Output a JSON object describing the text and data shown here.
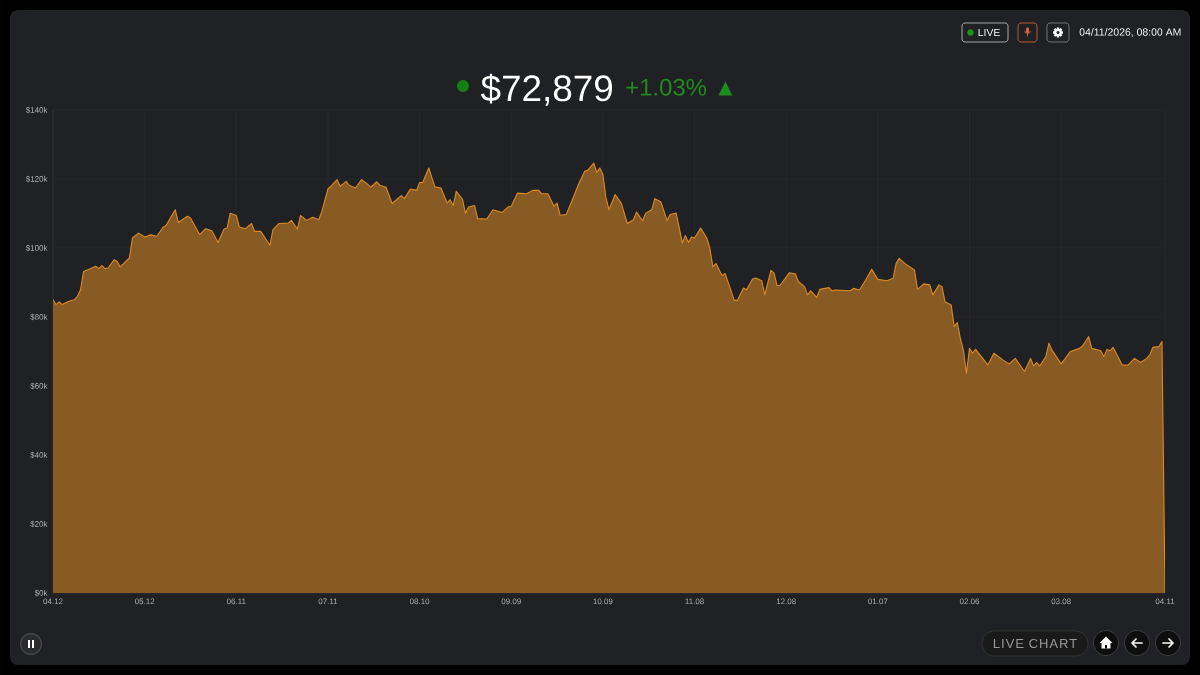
{
  "chart_data": {
    "type": "area",
    "title": "$72,879",
    "subtitle": "+1.03% ▲",
    "annotations": [
      "LIVE",
      "04/11/2026, 08:00 AM",
      "LIVE CHART"
    ],
    "color": "#dd8a25",
    "grid": true,
    "xlim": [
      "2025-04-12",
      "2026-04-11"
    ],
    "xticks": [
      {
        "value": "2025-04-12",
        "label": "04.12"
      },
      {
        "value": "2025-05-12",
        "label": "05.12"
      },
      {
        "value": "2025-06-11",
        "label": "06.11"
      },
      {
        "value": "2025-07-11",
        "label": "07.11"
      },
      {
        "value": "2025-08-10",
        "label": "08.10"
      },
      {
        "value": "2025-09-09",
        "label": "09.09"
      },
      {
        "value": "2025-10-09",
        "label": "10.09"
      },
      {
        "value": "2025-11-08",
        "label": "11.08"
      },
      {
        "value": "2025-12-08",
        "label": "12.08"
      },
      {
        "value": "2026-01-07",
        "label": "01.07"
      },
      {
        "value": "2026-02-06",
        "label": "02.06"
      },
      {
        "value": "2026-03-08",
        "label": "03.08"
      },
      {
        "value": "2026-04-11",
        "label": "04.11"
      }
    ],
    "ylim": [
      0,
      140000
    ],
    "yticks": [
      {
        "value": 0,
        "label": "$0k"
      },
      {
        "value": 20000,
        "label": "$20k"
      },
      {
        "value": 40000,
        "label": "$40k"
      },
      {
        "value": 60000,
        "label": "$60k"
      },
      {
        "value": 80000,
        "label": "$80k"
      },
      {
        "value": 100000,
        "label": "$100k"
      },
      {
        "value": 120000,
        "label": "$120k"
      },
      {
        "value": 140000,
        "label": "$140k"
      }
    ],
    "x": [
      "2025-04-12",
      "2025-04-13",
      "2025-04-14",
      "2025-04-15",
      "2025-04-17",
      "2025-04-18",
      "2025-04-19",
      "2025-04-20",
      "2025-04-21",
      "2025-04-22",
      "2025-04-24",
      "2025-04-26",
      "2025-04-27",
      "2025-04-28",
      "2025-04-29",
      "2025-04-30",
      "2025-05-02",
      "2025-05-03",
      "2025-05-04",
      "2025-05-07",
      "2025-05-08",
      "2025-05-10",
      "2025-05-12",
      "2025-05-14",
      "2025-05-16",
      "2025-05-18",
      "2025-05-19",
      "2025-05-22",
      "2025-05-23",
      "2025-05-26",
      "2025-05-27",
      "2025-05-30",
      "2025-06-01",
      "2025-06-03",
      "2025-06-05",
      "2025-06-07",
      "2025-06-08",
      "2025-06-09",
      "2025-06-11",
      "2025-06-12",
      "2025-06-14",
      "2025-06-16",
      "2025-06-17",
      "2025-06-19",
      "2025-06-22",
      "2025-06-23",
      "2025-06-25",
      "2025-06-28",
      "2025-06-29",
      "2025-07-01",
      "2025-07-02",
      "2025-07-04",
      "2025-07-06",
      "2025-07-08",
      "2025-07-09",
      "2025-07-11",
      "2025-07-12",
      "2025-07-14",
      "2025-07-15",
      "2025-07-17",
      "2025-07-18",
      "2025-07-20",
      "2025-07-22",
      "2025-07-24",
      "2025-07-25",
      "2025-07-27",
      "2025-07-28",
      "2025-07-30",
      "2025-08-01",
      "2025-08-04",
      "2025-08-05",
      "2025-08-07",
      "2025-08-09",
      "2025-08-10",
      "2025-08-11",
      "2025-08-13",
      "2025-08-15",
      "2025-08-17",
      "2025-08-19",
      "2025-08-20",
      "2025-08-21",
      "2025-08-22",
      "2025-08-24",
      "2025-08-25",
      "2025-08-26",
      "2025-08-28",
      "2025-08-29",
      "2025-09-01",
      "2025-09-03",
      "2025-09-06",
      "2025-09-08",
      "2025-09-09",
      "2025-09-11",
      "2025-09-14",
      "2025-09-16",
      "2025-09-18",
      "2025-09-19",
      "2025-09-21",
      "2025-09-23",
      "2025-09-24",
      "2025-09-25",
      "2025-09-27",
      "2025-09-29",
      "2025-10-01",
      "2025-10-03",
      "2025-10-04",
      "2025-10-06",
      "2025-10-07",
      "2025-10-08",
      "2025-10-09",
      "2025-10-10",
      "2025-10-11",
      "2025-10-13",
      "2025-10-15",
      "2025-10-17",
      "2025-10-19",
      "2025-10-20",
      "2025-10-22",
      "2025-10-23",
      "2025-10-25",
      "2025-10-26",
      "2025-10-28",
      "2025-10-30",
      "2025-10-31",
      "2025-11-02",
      "2025-11-04",
      "2025-11-05",
      "2025-11-06",
      "2025-11-07",
      "2025-11-08",
      "2025-11-10",
      "2025-11-12",
      "2025-11-13",
      "2025-11-14",
      "2025-11-15",
      "2025-11-17",
      "2025-11-18",
      "2025-11-21",
      "2025-11-22",
      "2025-11-24",
      "2025-11-25",
      "2025-11-27",
      "2025-11-28",
      "2025-11-30",
      "2025-12-01",
      "2025-12-03",
      "2025-12-04",
      "2025-12-05",
      "2025-12-06",
      "2025-12-09",
      "2025-12-11",
      "2025-12-12",
      "2025-12-14",
      "2025-12-15",
      "2025-12-16",
      "2025-12-18",
      "2025-12-19",
      "2025-12-22",
      "2025-12-23",
      "2025-12-24",
      "2025-12-29",
      "2025-12-30",
      "2026-01-01",
      "2026-01-03",
      "2026-01-05",
      "2026-01-07",
      "2026-01-10",
      "2026-01-12",
      "2026-01-13",
      "2026-01-14",
      "2026-01-16",
      "2026-01-19",
      "2026-01-20",
      "2026-01-22",
      "2026-01-24",
      "2026-01-25",
      "2026-01-27",
      "2026-01-28",
      "2026-01-29",
      "2026-01-31",
      "2026-02-01",
      "2026-02-02",
      "2026-02-03",
      "2026-02-04",
      "2026-02-05",
      "2026-02-06",
      "2026-02-07",
      "2026-02-08",
      "2026-02-12",
      "2026-02-14",
      "2026-02-17",
      "2026-02-19",
      "2026-02-21",
      "2026-02-24",
      "2026-02-26",
      "2026-02-27",
      "2026-02-28",
      "2026-03-01",
      "2026-03-03",
      "2026-03-04",
      "2026-03-05",
      "2026-03-08",
      "2026-03-11",
      "2026-03-14",
      "2026-03-15",
      "2026-03-17",
      "2026-03-18",
      "2026-03-21",
      "2026-03-22",
      "2026-03-23",
      "2026-03-24",
      "2026-03-25",
      "2026-03-28",
      "2026-03-30",
      "2026-04-01",
      "2026-04-03",
      "2026-04-05",
      "2026-04-06",
      "2026-04-07",
      "2026-04-09",
      "2026-04-10",
      "2026-04-11"
    ],
    "values": [
      85000,
      83600,
      84400,
      83600,
      84500,
      84800,
      85000,
      86000,
      87900,
      93200,
      93900,
      94700,
      94000,
      94900,
      94000,
      94200,
      96600,
      96100,
      94500,
      97100,
      102900,
      104300,
      103200,
      103800,
      103400,
      106000,
      106500,
      111100,
      107400,
      109200,
      108700,
      103900,
      105600,
      105000,
      101600,
      105500,
      105800,
      110100,
      109400,
      106100,
      105600,
      107100,
      104800,
      104800,
      100800,
      105300,
      107100,
      107200,
      108000,
      105500,
      109400,
      108000,
      108900,
      108200,
      110600,
      117100,
      117900,
      119800,
      117900,
      119300,
      118100,
      117400,
      119800,
      118500,
      117600,
      119200,
      118200,
      117600,
      112900,
      115200,
      114300,
      117100,
      116700,
      119000,
      119000,
      123200,
      117700,
      117400,
      113000,
      114000,
      112300,
      116400,
      114200,
      110100,
      111900,
      112300,
      108500,
      108400,
      111100,
      110300,
      111900,
      112100,
      115900,
      115700,
      116700,
      116700,
      115700,
      115700,
      112100,
      113000,
      109500,
      109700,
      114000,
      118400,
      122200,
      122500,
      124600,
      121900,
      123200,
      121300,
      114500,
      111100,
      115500,
      113000,
      107100,
      108200,
      110400,
      107900,
      110100,
      111100,
      114300,
      113300,
      108000,
      109700,
      110100,
      101500,
      103600,
      101600,
      103200,
      102900,
      105800,
      102900,
      100000,
      94500,
      95500,
      92000,
      92600,
      84800,
      84800,
      88400,
      87900,
      91000,
      91300,
      90500,
      86500,
      93500,
      92800,
      89100,
      89200,
      92800,
      92500,
      90200,
      88800,
      86400,
      87600,
      85700,
      88000,
      88500,
      87600,
      87800,
      87600,
      88300,
      87800,
      90700,
      93800,
      90900,
      90500,
      91200,
      95600,
      97000,
      95400,
      93600,
      88000,
      89600,
      89300,
      86400,
      89300,
      88800,
      84400,
      83500,
      77200,
      78400,
      73800,
      70400,
      63700,
      70900,
      69500,
      70600,
      66100,
      69500,
      67500,
      66400,
      68000,
      64200,
      68000,
      65800,
      66800,
      65800,
      68500,
      72400,
      70400,
      66400,
      70000,
      70900,
      71600,
      74300,
      70900,
      70200,
      68500,
      70600,
      70200,
      71200,
      66100,
      66100,
      68000,
      66800,
      68000,
      69000,
      71200,
      71400,
      72900,
      0
    ]
  }
}
